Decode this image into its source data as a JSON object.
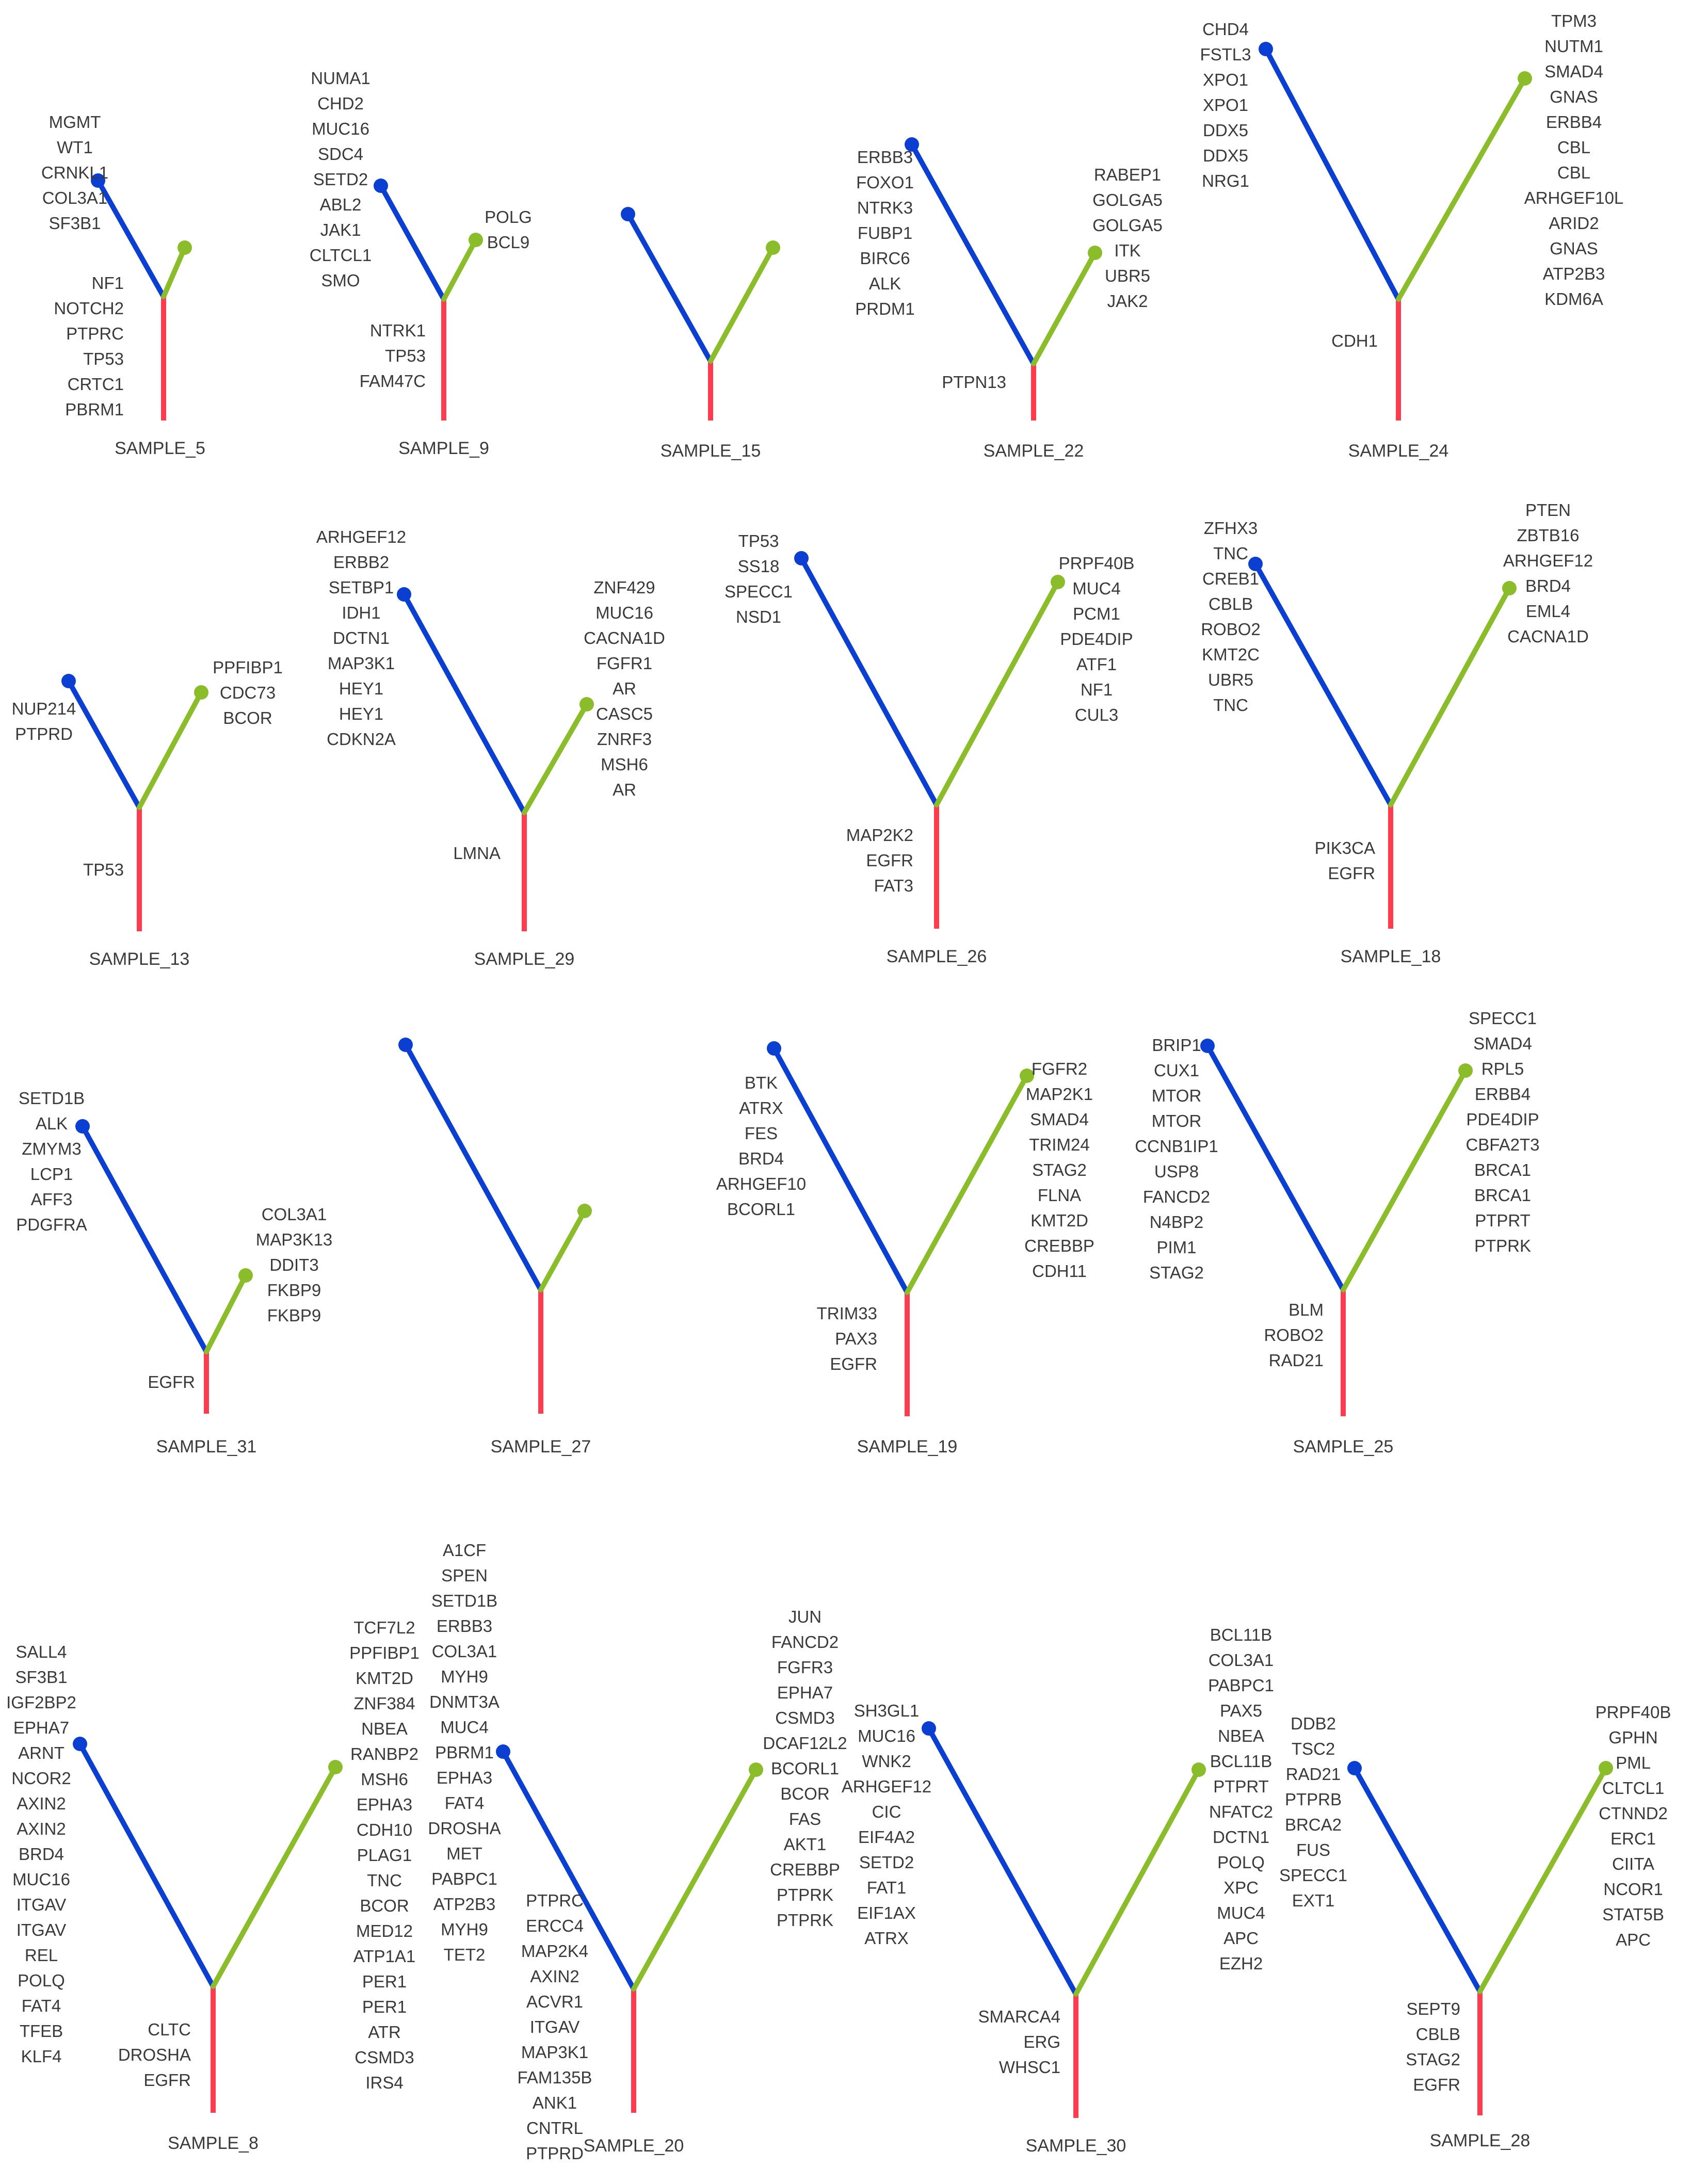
{
  "colors": {
    "trunk": "#ff3b4f",
    "branch_a": "#0a3fd1",
    "branch_b": "#8bbd2a",
    "text": "#3a3a3a"
  },
  "trees": [
    {
      "name": "SAMPLE_5",
      "a_genes": [
        "MGMT",
        "WT1",
        "CRNKL1",
        "COL3A1",
        "SF3B1"
      ],
      "b_genes": [],
      "trunk_genes": [
        "NF1",
        "NOTCH2",
        "PTPRC",
        "TP53",
        "CRTC1",
        "PBRM1"
      ]
    },
    {
      "name": "SAMPLE_9",
      "a_genes": [
        "NUMA1",
        "CHD2",
        "MUC16",
        "SDC4",
        "SETD2",
        "ABL2",
        "JAK1",
        "CLTCL1",
        "SMO"
      ],
      "b_genes": [
        "POLG",
        "BCL9"
      ],
      "trunk_genes": [
        "NTRK1",
        "TP53",
        "FAM47C"
      ]
    },
    {
      "name": "SAMPLE_15",
      "a_genes": [],
      "b_genes": [],
      "trunk_genes": []
    },
    {
      "name": "SAMPLE_22",
      "a_genes": [
        "ERBB3",
        "FOXO1",
        "NTRK3",
        "FUBP1",
        "BIRC6",
        "ALK",
        "PRDM1"
      ],
      "b_genes": [
        "RABEP1",
        "GOLGA5",
        "GOLGA5",
        "ITK",
        "UBR5",
        "JAK2"
      ],
      "trunk_genes": [
        "PTPN13"
      ]
    },
    {
      "name": "SAMPLE_24",
      "a_genes": [
        "CHD4",
        "FSTL3",
        "XPO1",
        "XPO1",
        "DDX5",
        "DDX5",
        "NRG1"
      ],
      "b_genes": [
        "TPM3",
        "NUTM1",
        "SMAD4",
        "GNAS",
        "ERBB4",
        "CBL",
        "CBL",
        "ARHGEF10L",
        "ARID2",
        "GNAS",
        "ATP2B3",
        "KDM6A"
      ],
      "trunk_genes": [
        "CDH1"
      ]
    },
    {
      "name": "SAMPLE_13",
      "a_genes": [
        "NUP214",
        "PTPRD"
      ],
      "b_genes": [
        "PPFIBP1",
        "CDC73",
        "BCOR"
      ],
      "trunk_genes": [
        "TP53"
      ]
    },
    {
      "name": "SAMPLE_29",
      "a_genes": [
        "ARHGEF12",
        "ERBB2",
        "SETBP1",
        "IDH1",
        "DCTN1",
        "MAP3K1",
        "HEY1",
        "HEY1",
        "CDKN2A"
      ],
      "b_genes": [
        "ZNF429",
        "MUC16",
        "CACNA1D",
        "FGFR1",
        "AR",
        "CASC5",
        "ZNRF3",
        "MSH6",
        "AR"
      ],
      "trunk_genes": [
        "LMNA"
      ]
    },
    {
      "name": "SAMPLE_26",
      "a_genes": [
        "TP53",
        "SS18",
        "SPECC1",
        "NSD1"
      ],
      "b_genes": [
        "PRPF40B",
        "MUC4",
        "PCM1",
        "PDE4DIP",
        "ATF1",
        "NF1",
        "CUL3"
      ],
      "trunk_genes": [
        "MAP2K2",
        "EGFR",
        "FAT3"
      ]
    },
    {
      "name": "SAMPLE_18",
      "a_genes": [
        "ZFHX3",
        "TNC",
        "CREB1",
        "CBLB",
        "ROBO2",
        "KMT2C",
        "UBR5",
        "TNC"
      ],
      "b_genes": [
        "PTEN",
        "ZBTB16",
        "ARHGEF12",
        "BRD4",
        "EML4",
        "CACNA1D"
      ],
      "trunk_genes": [
        "PIK3CA",
        "EGFR"
      ]
    },
    {
      "name": "SAMPLE_31",
      "a_genes": [
        "SETD1B",
        "ALK",
        "ZMYM3",
        "LCP1",
        "AFF3",
        "PDGFRA"
      ],
      "b_genes": [
        "COL3A1",
        "MAP3K13",
        "DDIT3",
        "FKBP9",
        "FKBP9"
      ],
      "trunk_genes": [
        "EGFR"
      ]
    },
    {
      "name": "SAMPLE_27",
      "a_genes": [],
      "b_genes": [],
      "trunk_genes": []
    },
    {
      "name": "SAMPLE_19",
      "a_genes": [
        "BTK",
        "ATRX",
        "FES",
        "BRD4",
        "ARHGEF10",
        "BCORL1"
      ],
      "b_genes": [
        "FGFR2",
        "MAP2K1",
        "SMAD4",
        "TRIM24",
        "STAG2",
        "FLNA",
        "KMT2D",
        "CREBBP",
        "CDH11"
      ],
      "trunk_genes": [
        "TRIM33",
        "PAX3",
        "EGFR"
      ]
    },
    {
      "name": "SAMPLE_25",
      "a_genes": [
        "BRIP1",
        "CUX1",
        "MTOR",
        "MTOR",
        "CCNB1IP1",
        "USP8",
        "FANCD2",
        "N4BP2",
        "PIM1",
        "STAG2"
      ],
      "b_genes": [
        "SPECC1",
        "SMAD4",
        "RPL5",
        "ERBB4",
        "PDE4DIP",
        "CBFA2T3",
        "BRCA1",
        "BRCA1",
        "PTPRT",
        "PTPRK"
      ],
      "trunk_genes": [
        "BLM",
        "ROBO2",
        "RAD21"
      ]
    },
    {
      "name": "SAMPLE_8",
      "a_genes": [
        "SALL4",
        "SF3B1",
        "IGF2BP2",
        "EPHA7",
        "ARNT",
        "NCOR2",
        "AXIN2",
        "AXIN2",
        "BRD4",
        "MUC16",
        "ITGAV",
        "ITGAV",
        "REL",
        "POLQ",
        "FAT4",
        "TFEB",
        "KLF4"
      ],
      "b_genes": [
        "TCF7L2",
        "PPFIBP1",
        "KMT2D",
        "ZNF384",
        "NBEA",
        "RANBP2",
        "MSH6",
        "EPHA3",
        "CDH10",
        "PLAG1",
        "TNC",
        "BCOR",
        "MED12",
        "ATP1A1",
        "PER1",
        "PER1",
        "ATR",
        "CSMD3",
        "IRS4"
      ],
      "trunk_genes": [
        "CLTC",
        "DROSHA",
        "EGFR"
      ]
    },
    {
      "name": "SAMPLE_20",
      "a_genes": [
        "A1CF",
        "SPEN",
        "SETD1B",
        "ERBB3",
        "COL3A1",
        "MYH9",
        "DNMT3A",
        "MUC4",
        "PBRM1",
        "EPHA3",
        "FAT4",
        "DROSHA",
        "MET",
        "PABPC1",
        "ATP2B3",
        "MYH9",
        "TET2"
      ],
      "b_genes": [
        "JUN",
        "FANCD2",
        "FGFR3",
        "EPHA7",
        "CSMD3",
        "DCAF12L2",
        "BCORL1",
        "BCOR",
        "FAS",
        "AKT1",
        "CREBBP",
        "PTPRK",
        "PTPRK"
      ],
      "trunk_genes": [
        "PTPRC",
        "ERCC4",
        "MAP2K4",
        "AXIN2",
        "ACVR1",
        "ITGAV",
        "MAP3K1",
        "FAM135B",
        "ANK1",
        "CNTRL",
        "PTPRD"
      ]
    },
    {
      "name": "SAMPLE_30",
      "a_genes": [
        "SH3GL1",
        "MUC16",
        "WNK2",
        "ARHGEF12",
        "CIC",
        "EIF4A2",
        "SETD2",
        "FAT1",
        "EIF1AX",
        "ATRX"
      ],
      "b_genes": [
        "BCL11B",
        "COL3A1",
        "PABPC1",
        "PAX5",
        "NBEA",
        "BCL11B",
        "PTPRT",
        "NFATC2",
        "DCTN1",
        "POLQ",
        "XPC",
        "MUC4",
        "APC",
        "EZH2"
      ],
      "trunk_genes": [
        "SMARCA4",
        "ERG",
        "WHSC1"
      ]
    },
    {
      "name": "SAMPLE_28",
      "a_genes": [
        "DDB2",
        "TSC2",
        "RAD21",
        "PTPRB",
        "BRCA2",
        "FUS",
        "SPECC1",
        "EXT1"
      ],
      "b_genes": [
        "PRPF40B",
        "GPHN",
        "PML",
        "CLTCL1",
        "CTNND2",
        "ERC1",
        "CIITA",
        "NCOR1",
        "STAT5B",
        "APC"
      ],
      "trunk_genes": [
        "SEPT9",
        "CBLB",
        "STAG2",
        "EGFR"
      ]
    }
  ]
}
